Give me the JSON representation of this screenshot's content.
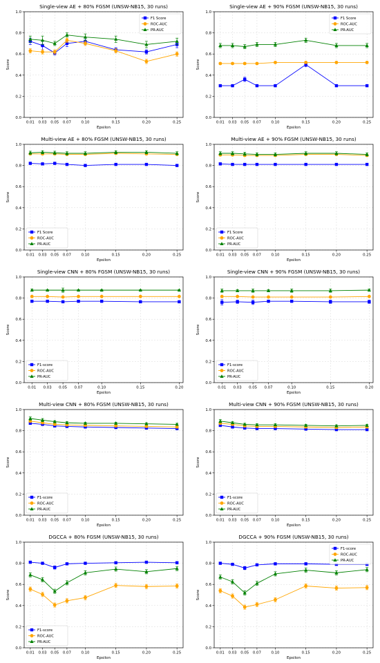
{
  "colors": {
    "f1": "#0000ff",
    "roc": "#ffa500",
    "pr": "#008000",
    "grid": "#d9d9d9"
  },
  "chart_data": [
    {
      "type": "line",
      "title": "Single-view AE + 80% FGSM (UNSW-NB15, 30 runs)",
      "xlabel": "Epsilon",
      "ylabel": "Score",
      "x": [
        0.01,
        0.03,
        0.05,
        0.07,
        0.1,
        0.15,
        0.2,
        0.25
      ],
      "xticks": [
        "0.01",
        "0.03",
        "0.05",
        "0.07",
        "0.10",
        "0.15",
        "0.20",
        "0.25"
      ],
      "xlim": [
        0.0,
        0.26
      ],
      "ylim": [
        0.0,
        1.0
      ],
      "yticks": [
        "0.0",
        "0.2",
        "0.4",
        "0.6",
        "0.8",
        "1.0"
      ],
      "grid": true,
      "legend": "top-right",
      "series": [
        {
          "name": "F1 Score",
          "values": [
            0.72,
            0.68,
            0.61,
            0.7,
            0.72,
            0.64,
            0.62,
            0.69
          ],
          "err": [
            0.03,
            0.04,
            0.02,
            0.03,
            0.03,
            0.02,
            0.02,
            0.03
          ]
        },
        {
          "name": "ROC-AUC",
          "values": [
            0.63,
            0.62,
            0.62,
            0.73,
            0.7,
            0.63,
            0.53,
            0.6
          ],
          "err": [
            0.02,
            0.02,
            0.02,
            0.02,
            0.02,
            0.02,
            0.02,
            0.02
          ]
        },
        {
          "name": "PR-AUC",
          "values": [
            0.74,
            0.73,
            0.7,
            0.78,
            0.76,
            0.74,
            0.69,
            0.72
          ],
          "err": [
            0.03,
            0.04,
            0.02,
            0.02,
            0.03,
            0.03,
            0.03,
            0.03
          ]
        }
      ]
    },
    {
      "type": "line",
      "title": "Single-view AE + 90% FGSM (UNSW-NB15, 30 runs)",
      "xlabel": "Epsilon",
      "ylabel": "Score",
      "x": [
        0.01,
        0.03,
        0.05,
        0.07,
        0.1,
        0.15,
        0.2,
        0.25
      ],
      "xticks": [
        "0.01",
        "0.03",
        "0.05",
        "0.07",
        "0.10",
        "0.15",
        "0.20",
        "0.25"
      ],
      "xlim": [
        0.0,
        0.26
      ],
      "ylim": [
        0.0,
        1.0
      ],
      "yticks": [
        "0.0",
        "0.2",
        "0.4",
        "0.6",
        "0.8",
        "1.0"
      ],
      "grid": true,
      "legend": "top-right",
      "series": [
        {
          "name": "F1 Score",
          "values": [
            0.3,
            0.3,
            0.36,
            0.3,
            0.3,
            0.5,
            0.3,
            0.3
          ],
          "err": [
            0.01,
            0.01,
            0.02,
            0.01,
            0.01,
            0.02,
            0.01,
            0.01
          ]
        },
        {
          "name": "ROC-AUC",
          "values": [
            0.51,
            0.51,
            0.51,
            0.51,
            0.52,
            0.52,
            0.52,
            0.52
          ],
          "err": [
            0.01,
            0.01,
            0.01,
            0.01,
            0.01,
            0.01,
            0.01,
            0.01
          ]
        },
        {
          "name": "PR-AUC",
          "values": [
            0.68,
            0.68,
            0.67,
            0.69,
            0.69,
            0.73,
            0.68,
            0.68
          ],
          "err": [
            0.02,
            0.02,
            0.02,
            0.02,
            0.02,
            0.02,
            0.02,
            0.02
          ]
        }
      ]
    },
    {
      "type": "line",
      "title": "Multi-view AE + 80% FGSM (UNSW-NB15, 30 runs)",
      "xlabel": "Epsilon",
      "ylabel": "Score",
      "x": [
        0.01,
        0.03,
        0.05,
        0.07,
        0.1,
        0.15,
        0.2,
        0.25
      ],
      "xticks": [
        "0.01",
        "0.03",
        "0.05",
        "0.07",
        "0.10",
        "0.15",
        "0.20",
        "0.25"
      ],
      "xlim": [
        0.0,
        0.26
      ],
      "ylim": [
        0.0,
        1.0
      ],
      "yticks": [
        "0.0",
        "0.2",
        "0.4",
        "0.6",
        "0.8",
        "1.0"
      ],
      "grid": true,
      "legend": "bottom-left",
      "series": [
        {
          "name": "F1 Score",
          "values": [
            0.82,
            0.815,
            0.82,
            0.81,
            0.8,
            0.81,
            0.81,
            0.8
          ],
          "err": [
            0.01,
            0.01,
            0.01,
            0.01,
            0.01,
            0.01,
            0.01,
            0.01
          ]
        },
        {
          "name": "ROC-AUC",
          "values": [
            0.91,
            0.91,
            0.91,
            0.905,
            0.905,
            0.915,
            0.91,
            0.905
          ],
          "err": [
            0.01,
            0.01,
            0.01,
            0.01,
            0.01,
            0.01,
            0.01,
            0.01
          ]
        },
        {
          "name": "PR-AUC",
          "values": [
            0.92,
            0.925,
            0.92,
            0.915,
            0.915,
            0.925,
            0.925,
            0.915
          ],
          "err": [
            0.015,
            0.015,
            0.015,
            0.015,
            0.015,
            0.015,
            0.015,
            0.015
          ]
        }
      ]
    },
    {
      "type": "line",
      "title": "Multi-view AE + 90% FGSM (UNSW-NB15, 30 runs)",
      "xlabel": "Epsilon",
      "ylabel": "Score",
      "x": [
        0.01,
        0.03,
        0.05,
        0.07,
        0.1,
        0.15,
        0.2,
        0.25
      ],
      "xticks": [
        "0.01",
        "0.03",
        "0.05",
        "0.07",
        "0.10",
        "0.15",
        "0.20",
        "0.25"
      ],
      "xlim": [
        0.0,
        0.26
      ],
      "ylim": [
        0.0,
        1.0
      ],
      "yticks": [
        "0.0",
        "0.2",
        "0.4",
        "0.6",
        "0.8",
        "1.0"
      ],
      "grid": true,
      "legend": "bottom-left",
      "series": [
        {
          "name": "F1 Score",
          "values": [
            0.815,
            0.81,
            0.81,
            0.81,
            0.81,
            0.81,
            0.81,
            0.81
          ],
          "err": [
            0.01,
            0.01,
            0.01,
            0.01,
            0.01,
            0.01,
            0.01,
            0.01
          ]
        },
        {
          "name": "ROC-AUC",
          "values": [
            0.9,
            0.9,
            0.895,
            0.895,
            0.895,
            0.905,
            0.905,
            0.895
          ],
          "err": [
            0.01,
            0.01,
            0.01,
            0.01,
            0.01,
            0.01,
            0.01,
            0.01
          ]
        },
        {
          "name": "PR-AUC",
          "values": [
            0.915,
            0.915,
            0.91,
            0.905,
            0.905,
            0.915,
            0.915,
            0.905
          ],
          "err": [
            0.015,
            0.015,
            0.015,
            0.015,
            0.015,
            0.015,
            0.015,
            0.015
          ]
        }
      ]
    },
    {
      "type": "line",
      "title": "Single-view CNN + 80% FGSM (UNSW-NB15, 30 runs)",
      "xlabel": "Epsilon",
      "ylabel": "Score",
      "x": [
        0.01,
        0.03,
        0.05,
        0.07,
        0.1,
        0.15,
        0.2
      ],
      "xticks": [
        "0.01",
        "0.03",
        "0.05",
        "0.07",
        "0.10",
        "0.15",
        "0.20"
      ],
      "xlim": [
        0.0,
        0.205
      ],
      "ylim": [
        0.0,
        1.0
      ],
      "yticks": [
        "0.0",
        "0.2",
        "0.4",
        "0.6",
        "0.8",
        "1.0"
      ],
      "grid": true,
      "legend": "bottom-left",
      "series": [
        {
          "name": "F1-score",
          "values": [
            0.77,
            0.77,
            0.765,
            0.77,
            0.77,
            0.765,
            0.765
          ],
          "err": [
            0.01,
            0.01,
            0.01,
            0.01,
            0.01,
            0.01,
            0.01
          ]
        },
        {
          "name": "ROC-AUC",
          "values": [
            0.815,
            0.815,
            0.81,
            0.815,
            0.815,
            0.815,
            0.815
          ],
          "err": [
            0.005,
            0.005,
            0.005,
            0.005,
            0.005,
            0.005,
            0.005
          ]
        },
        {
          "name": "PR-AUC",
          "values": [
            0.875,
            0.875,
            0.875,
            0.875,
            0.875,
            0.875,
            0.875
          ],
          "err": [
            0.01,
            0.005,
            0.02,
            0.005,
            0.005,
            0.005,
            0.005
          ]
        }
      ]
    },
    {
      "type": "line",
      "title": "Single-view CNN + 90% FGSM (UNSW-NB15, 30 runs)",
      "xlabel": "Epsilon",
      "ylabel": "Score",
      "x": [
        0.01,
        0.03,
        0.05,
        0.07,
        0.1,
        0.15,
        0.2
      ],
      "xticks": [
        "0.01",
        "0.03",
        "0.05",
        "0.07",
        "0.10",
        "0.15",
        "0.20"
      ],
      "xlim": [
        0.0,
        0.205
      ],
      "ylim": [
        0.0,
        1.0
      ],
      "yticks": [
        "0.0",
        "0.2",
        "0.4",
        "0.6",
        "0.8",
        "1.0"
      ],
      "grid": true,
      "legend": "bottom-left",
      "series": [
        {
          "name": "F1-score",
          "values": [
            0.76,
            0.765,
            0.76,
            0.77,
            0.77,
            0.765,
            0.765
          ],
          "err": [
            0.025,
            0.015,
            0.02,
            0.01,
            0.01,
            0.015,
            0.015
          ]
        },
        {
          "name": "ROC-AUC",
          "values": [
            0.815,
            0.815,
            0.81,
            0.81,
            0.81,
            0.81,
            0.815
          ],
          "err": [
            0.005,
            0.005,
            0.005,
            0.005,
            0.005,
            0.005,
            0.005
          ]
        },
        {
          "name": "PR-AUC",
          "values": [
            0.87,
            0.87,
            0.87,
            0.87,
            0.87,
            0.87,
            0.875
          ],
          "err": [
            0.015,
            0.01,
            0.015,
            0.01,
            0.015,
            0.015,
            0.01
          ]
        }
      ]
    },
    {
      "type": "line",
      "title": "Multi-view CNN + 80% FGSM (UNSW-NB15, 30 runs)",
      "xlabel": "Epsilon",
      "ylabel": "Score",
      "x": [
        0.01,
        0.03,
        0.05,
        0.07,
        0.1,
        0.15,
        0.2,
        0.25
      ],
      "xticks": [
        "0.01",
        "0.03",
        "0.05",
        "0.07",
        "0.10",
        "0.15",
        "0.20",
        "0.25"
      ],
      "xlim": [
        0.0,
        0.26
      ],
      "ylim": [
        0.0,
        1.0
      ],
      "yticks": [
        "0.0",
        "0.2",
        "0.4",
        "0.6",
        "0.8",
        "1.0"
      ],
      "grid": true,
      "legend": "bottom-left",
      "series": [
        {
          "name": "F1-score",
          "values": [
            0.87,
            0.86,
            0.845,
            0.84,
            0.835,
            0.83,
            0.825,
            0.82
          ],
          "err": [
            0.01,
            0.01,
            0.01,
            0.01,
            0.01,
            0.01,
            0.01,
            0.01
          ]
        },
        {
          "name": "ROC-AUC",
          "values": [
            0.89,
            0.875,
            0.86,
            0.855,
            0.85,
            0.845,
            0.84,
            0.835
          ],
          "err": [
            0.01,
            0.01,
            0.01,
            0.01,
            0.01,
            0.01,
            0.01,
            0.01
          ]
        },
        {
          "name": "PR-AUC",
          "values": [
            0.915,
            0.9,
            0.885,
            0.875,
            0.87,
            0.87,
            0.865,
            0.86
          ],
          "err": [
            0.015,
            0.015,
            0.01,
            0.01,
            0.01,
            0.01,
            0.01,
            0.01
          ]
        }
      ]
    },
    {
      "type": "line",
      "title": "Multi-view CNN + 90% FGSM (UNSW-NB15, 30 runs)",
      "xlabel": "Epsilon",
      "ylabel": "Score",
      "x": [
        0.01,
        0.03,
        0.05,
        0.07,
        0.1,
        0.15,
        0.2,
        0.25
      ],
      "xticks": [
        "0.01",
        "0.03",
        "0.05",
        "0.07",
        "0.10",
        "0.15",
        "0.20",
        "0.25"
      ],
      "xlim": [
        0.0,
        0.26
      ],
      "ylim": [
        0.0,
        1.0
      ],
      "yticks": [
        "0.0",
        "0.2",
        "0.4",
        "0.6",
        "0.8",
        "1.0"
      ],
      "grid": true,
      "legend": "bottom-left",
      "series": [
        {
          "name": "F1-score",
          "values": [
            0.85,
            0.835,
            0.825,
            0.82,
            0.82,
            0.815,
            0.81,
            0.81
          ],
          "err": [
            0.01,
            0.01,
            0.01,
            0.01,
            0.01,
            0.01,
            0.01,
            0.01
          ]
        },
        {
          "name": "ROC-AUC",
          "values": [
            0.87,
            0.86,
            0.845,
            0.84,
            0.84,
            0.835,
            0.83,
            0.835
          ],
          "err": [
            0.01,
            0.01,
            0.01,
            0.01,
            0.01,
            0.01,
            0.01,
            0.01
          ]
        },
        {
          "name": "PR-AUC",
          "values": [
            0.89,
            0.875,
            0.86,
            0.855,
            0.855,
            0.85,
            0.845,
            0.85
          ],
          "err": [
            0.015,
            0.01,
            0.01,
            0.01,
            0.01,
            0.01,
            0.01,
            0.01
          ]
        }
      ]
    },
    {
      "type": "line",
      "title": "DGCCA + 80% FGSM (UNSW-NB15, 30 runs)",
      "xlabel": "Epsilon",
      "ylabel": "Score",
      "x": [
        0.01,
        0.03,
        0.05,
        0.07,
        0.1,
        0.15,
        0.2,
        0.25
      ],
      "xticks": [
        "0.01",
        "0.03",
        "0.05",
        "0.07",
        "0.10",
        "0.15",
        "0.20",
        "0.25"
      ],
      "xlim": [
        0.0,
        0.26
      ],
      "ylim": [
        0.0,
        1.0
      ],
      "yticks": [
        "0.0",
        "0.2",
        "0.4",
        "0.6",
        "0.8",
        "1.0"
      ],
      "grid": true,
      "legend": "bottom-left",
      "series": [
        {
          "name": "F1-score",
          "values": [
            0.81,
            0.8,
            0.76,
            0.795,
            0.8,
            0.805,
            0.81,
            0.805
          ],
          "err": [
            0.01,
            0.01,
            0.015,
            0.01,
            0.01,
            0.01,
            0.01,
            0.01
          ]
        },
        {
          "name": "ROC-AUC",
          "values": [
            0.555,
            0.505,
            0.405,
            0.445,
            0.475,
            0.59,
            0.58,
            0.585
          ],
          "err": [
            0.02,
            0.02,
            0.02,
            0.02,
            0.02,
            0.02,
            0.02,
            0.02
          ]
        },
        {
          "name": "PR-AUC",
          "values": [
            0.69,
            0.645,
            0.535,
            0.615,
            0.71,
            0.745,
            0.72,
            0.75
          ],
          "err": [
            0.02,
            0.02,
            0.02,
            0.02,
            0.02,
            0.02,
            0.02,
            0.02
          ]
        }
      ]
    },
    {
      "type": "line",
      "title": "DGCCA + 90% FGSM (UNSW-NB15, 30 runs)",
      "xlabel": "Epsilon",
      "ylabel": "Score",
      "x": [
        0.01,
        0.03,
        0.05,
        0.07,
        0.1,
        0.15,
        0.2,
        0.25
      ],
      "xticks": [
        "0.01",
        "0.03",
        "0.05",
        "0.07",
        "0.10",
        "0.15",
        "0.20",
        "0.25"
      ],
      "xlim": [
        0.0,
        0.26
      ],
      "ylim": [
        0.0,
        1.0
      ],
      "yticks": [
        "0.0",
        "0.2",
        "0.4",
        "0.6",
        "0.8",
        "1.0"
      ],
      "grid": true,
      "legend": "top-right",
      "series": [
        {
          "name": "F1-score",
          "values": [
            0.8,
            0.79,
            0.755,
            0.785,
            0.795,
            0.795,
            0.79,
            0.79
          ],
          "err": [
            0.01,
            0.01,
            0.015,
            0.01,
            0.01,
            0.01,
            0.01,
            0.01
          ]
        },
        {
          "name": "ROC-AUC",
          "values": [
            0.54,
            0.49,
            0.385,
            0.41,
            0.455,
            0.585,
            0.565,
            0.57
          ],
          "err": [
            0.02,
            0.02,
            0.02,
            0.02,
            0.02,
            0.02,
            0.02,
            0.02
          ]
        },
        {
          "name": "PR-AUC",
          "values": [
            0.67,
            0.625,
            0.52,
            0.61,
            0.7,
            0.735,
            0.71,
            0.74
          ],
          "err": [
            0.02,
            0.02,
            0.02,
            0.02,
            0.02,
            0.02,
            0.02,
            0.02
          ]
        }
      ]
    }
  ]
}
